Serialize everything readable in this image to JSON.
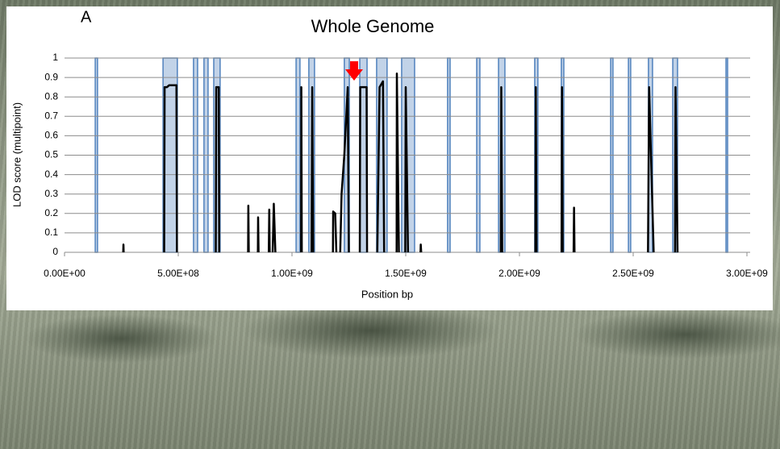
{
  "chart_data": {
    "type": "line",
    "panel_label": "A",
    "title": "Whole Genome",
    "x_label": "Position bp",
    "y_label": "LOD score (multipoint)",
    "xlim": [
      0,
      3000000000
    ],
    "ylim": [
      0,
      1
    ],
    "xticks": [
      {
        "value": 0,
        "label": "0.00E+00"
      },
      {
        "value": 500000000,
        "label": "5.00E+08"
      },
      {
        "value": 1000000000,
        "label": "1.00E+09"
      },
      {
        "value": 1500000000,
        "label": "1.50E+09"
      },
      {
        "value": 2000000000,
        "label": "2.00E+09"
      },
      {
        "value": 2500000000,
        "label": "2.50E+09"
      },
      {
        "value": 3000000000,
        "label": "3.00E+09"
      }
    ],
    "yticks": [
      0,
      0.1,
      0.2,
      0.3,
      0.4,
      0.5,
      0.6,
      0.7,
      0.8,
      0.9,
      1
    ],
    "grid": true,
    "bands": {
      "color": "#4f81bd",
      "height": 1,
      "starts": [
        135000000,
        433000000,
        567000000,
        613000000,
        656000000,
        1018000000,
        1074000000,
        1230000000,
        1298000000,
        1372000000,
        1482000000,
        1684000000,
        1812000000,
        1908000000,
        2067000000,
        2184000000,
        2401000000,
        2479000000,
        2567000000,
        2674000000,
        2908000000
      ],
      "ends": [
        145000000,
        496000000,
        585000000,
        631000000,
        684000000,
        1035000000,
        1099000000,
        1252000000,
        1330000000,
        1418000000,
        1539000000,
        1695000000,
        1826000000,
        1936000000,
        2081000000,
        2195000000,
        2411000000,
        2489000000,
        2585000000,
        2695000000,
        2915000000
      ]
    },
    "series": [
      {
        "color": "#000000",
        "x": [
          258000000,
          259000000,
          260000000,
          null,
          438000000,
          440000000,
          450000000,
          460000000,
          492000000,
          494000000,
          null,
          665000000,
          667000000,
          678000000,
          680000000,
          null,
          807000000,
          808000000,
          810000000,
          null,
          850000000,
          851000000,
          853000000,
          null,
          898000000,
          900000000,
          902000000,
          null,
          915000000,
          920000000,
          927000000,
          null,
          1040000000,
          1041000000,
          1043000000,
          null,
          1086000000,
          1089000000,
          1093000000,
          null,
          1180000000,
          1181000000,
          1190000000,
          1195000000,
          null,
          1212000000,
          1218000000,
          1230000000,
          1245000000,
          1250000000,
          null,
          1298000000,
          1300000000,
          1328000000,
          1330000000,
          null,
          1375000000,
          1385000000,
          1400000000,
          1405000000,
          null,
          1460000000,
          1461000000,
          1470000000,
          null,
          1498000000,
          1500000000,
          1510000000,
          null,
          1565000000,
          1566000000,
          1568000000,
          null,
          1918000000,
          1920000000,
          1924000000,
          null,
          2070000000,
          2072000000,
          2075000000,
          null,
          2185000000,
          2187000000,
          2190000000,
          null,
          2238000000,
          2240000000,
          2242000000,
          null,
          2565000000,
          2570000000,
          2590000000,
          null,
          2684000000,
          2686000000,
          2695000000
        ],
        "values": [
          0,
          0.04,
          0,
          null,
          0,
          0.85,
          0.85,
          0.86,
          0.86,
          0,
          null,
          0,
          0.85,
          0.85,
          0,
          null,
          0,
          0.24,
          0,
          null,
          0,
          0.18,
          0,
          null,
          0,
          0.22,
          0,
          null,
          0,
          0.25,
          0,
          null,
          0,
          0.85,
          0,
          null,
          0,
          0.85,
          0,
          null,
          0,
          0.21,
          0.2,
          0,
          null,
          0,
          0.3,
          0.5,
          0.85,
          0,
          null,
          0,
          0.85,
          0.85,
          0,
          null,
          0,
          0.85,
          0.88,
          0,
          null,
          0,
          0.92,
          0,
          null,
          0,
          0.85,
          0,
          null,
          0,
          0.04,
          0,
          null,
          0,
          0.85,
          0,
          null,
          0,
          0.85,
          0,
          null,
          0,
          0.85,
          0,
          null,
          0,
          0.23,
          0,
          null,
          0,
          0.85,
          0,
          null,
          0,
          0.85,
          0
        ]
      }
    ]
  }
}
